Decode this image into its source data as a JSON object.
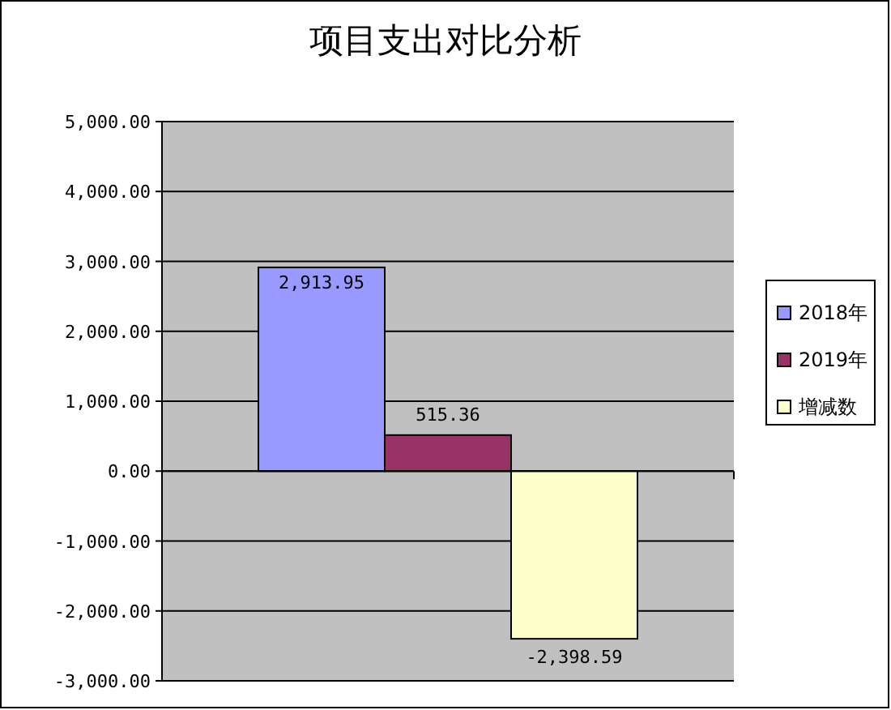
{
  "chart_data": {
    "type": "bar",
    "title": "项目支出对比分析",
    "categories": [
      null
    ],
    "series": [
      {
        "name": "2018年",
        "color": "#9999ff",
        "values": [
          2913.95
        ],
        "value_labels": [
          "2,913.95"
        ]
      },
      {
        "name": "2019年",
        "color": "#993366",
        "values": [
          515.36
        ],
        "value_labels": [
          "515.36"
        ]
      },
      {
        "name": "增减数",
        "color": "#ffffcc",
        "values": [
          -2398.59
        ],
        "value_labels": [
          "-2,398.59"
        ]
      }
    ],
    "ylim": [
      -3000,
      5000
    ],
    "yticks": [
      {
        "value": -3000,
        "label": "-3,000.00"
      },
      {
        "value": -2000,
        "label": "-2,000.00"
      },
      {
        "value": -1000,
        "label": "-1,000.00"
      },
      {
        "value": 0,
        "label": "0.00"
      },
      {
        "value": 1000,
        "label": "1,000.00"
      },
      {
        "value": 2000,
        "label": "2,000.00"
      },
      {
        "value": 3000,
        "label": "3,000.00"
      },
      {
        "value": 4000,
        "label": "4,000.00"
      },
      {
        "value": 5000,
        "label": "5,000.00"
      }
    ],
    "grid": "y",
    "legend": "right"
  }
}
